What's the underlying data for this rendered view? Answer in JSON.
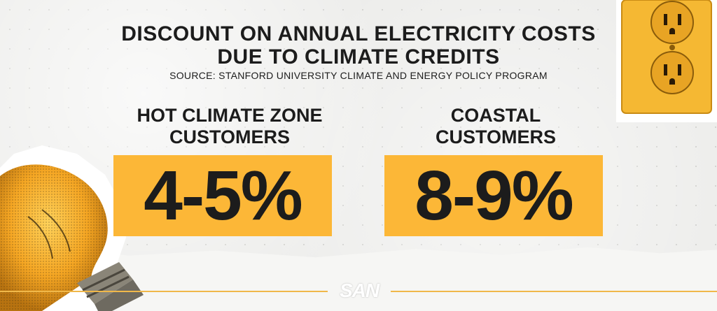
{
  "title": {
    "line1": "DISCOUNT ON ANNUAL ELECTRICITY COSTS",
    "line2": "DUE TO CLIMATE CREDITS"
  },
  "source": "SOURCE: STANFORD UNIVERSITY CLIMATE AND ENERGY POLICY PROGRAM",
  "groups": [
    {
      "label_line1": "HOT CLIMATE ZONE",
      "label_line2": "CUSTOMERS",
      "value": "4-5%"
    },
    {
      "label_line1": "COASTAL",
      "label_line2": "CUSTOMERS",
      "value": "8-9%"
    }
  ],
  "logo": "SAN",
  "colors": {
    "accent": "#fcb737",
    "text": "#1c1c1c",
    "background": "#ededeb"
  },
  "decorations": {
    "left_image": "light-bulb-icon",
    "right_image": "power-outlet-icon"
  }
}
